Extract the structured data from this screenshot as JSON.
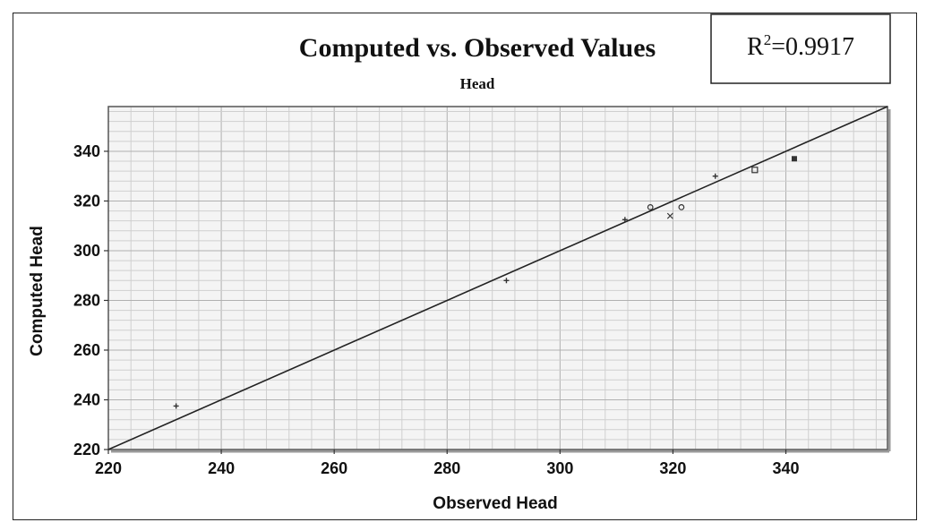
{
  "chart_data": {
    "type": "scatter",
    "title": "Computed vs. Observed Values",
    "subtitle": "Head",
    "xlabel": "Observed Head",
    "ylabel": "Computed Head",
    "xlim": [
      220,
      358
    ],
    "ylim": [
      220,
      358
    ],
    "xticks": [
      220,
      240,
      260,
      280,
      300,
      320,
      340
    ],
    "yticks": [
      220,
      240,
      260,
      280,
      300,
      320,
      340
    ],
    "grid": true,
    "reference_line": {
      "from": [
        220,
        220
      ],
      "to": [
        358,
        358
      ]
    },
    "annotation": {
      "prefix": "R",
      "superscript": "2",
      "value": "=0.9917"
    },
    "points": [
      {
        "x": 232,
        "y": 237.5,
        "marker": "cross"
      },
      {
        "x": 290.5,
        "y": 288,
        "marker": "cross"
      },
      {
        "x": 311.5,
        "y": 312.5,
        "marker": "cross"
      },
      {
        "x": 316,
        "y": 317.5,
        "marker": "circle"
      },
      {
        "x": 319.5,
        "y": 314,
        "marker": "x"
      },
      {
        "x": 321.5,
        "y": 317.5,
        "marker": "circle"
      },
      {
        "x": 327.5,
        "y": 330,
        "marker": "cross"
      },
      {
        "x": 334.5,
        "y": 332.5,
        "marker": "square"
      },
      {
        "x": 341.5,
        "y": 337,
        "marker": "filled-square"
      }
    ],
    "colors": {
      "line": "#222222",
      "grid_minor": "#cfcfcf",
      "grid_major": "#b0b0b0",
      "plot_bg": "#f4f4f4",
      "marker": "#333333"
    }
  }
}
